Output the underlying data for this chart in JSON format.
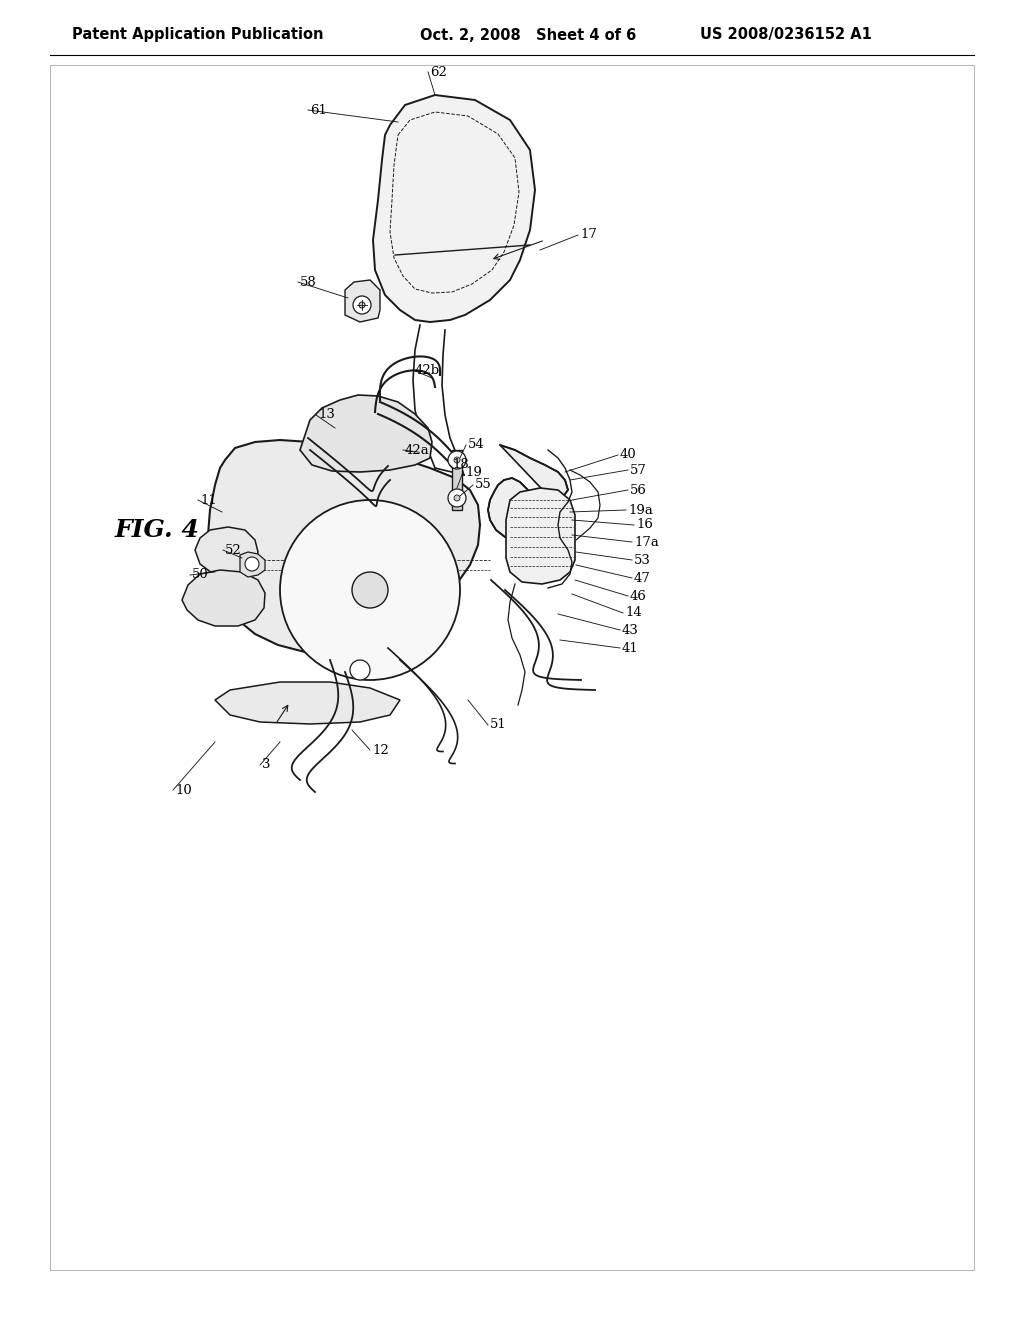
{
  "background_color": "#ffffff",
  "header_left": "Patent Application Publication",
  "header_center": "Oct. 2, 2008   Sheet 4 of 6",
  "header_right": "US 2008/0236152 A1",
  "fig_label": "FIG. 4",
  "header_fontsize": 10.5,
  "fig_label_fontsize": 18,
  "label_fontsize": 9.5,
  "line_color": "#1a1a1a",
  "line_color_light": "#555555"
}
